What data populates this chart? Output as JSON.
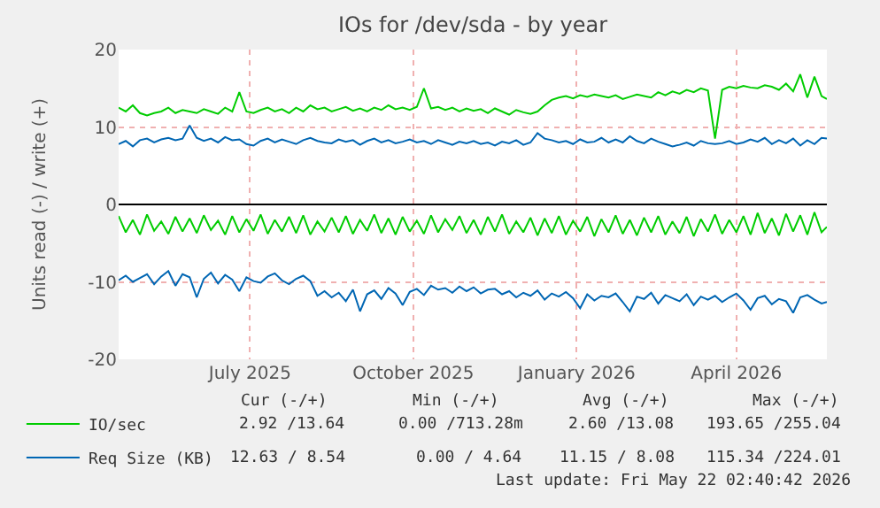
{
  "chart_data": {
    "type": "line",
    "title": "IOs for /dev/sda - by year",
    "ylabel": "Units read (-) / write (+)",
    "x": [
      "2025-04-18",
      "2025-04-22",
      "2025-04-26",
      "2025-04-30",
      "2025-05-04",
      "2025-05-08",
      "2025-05-12",
      "2025-05-16",
      "2025-05-20",
      "2025-05-24",
      "2025-05-28",
      "2025-06-01",
      "2025-06-05",
      "2025-06-09",
      "2025-06-13",
      "2025-06-17",
      "2025-06-21",
      "2025-06-25",
      "2025-06-29",
      "2025-07-03",
      "2025-07-07",
      "2025-07-11",
      "2025-07-15",
      "2025-07-19",
      "2025-07-23",
      "2025-07-27",
      "2025-07-31",
      "2025-08-04",
      "2025-08-08",
      "2025-08-12",
      "2025-08-16",
      "2025-08-20",
      "2025-08-24",
      "2025-08-28",
      "2025-09-01",
      "2025-09-05",
      "2025-09-09",
      "2025-09-13",
      "2025-09-17",
      "2025-09-21",
      "2025-09-25",
      "2025-09-29",
      "2025-10-03",
      "2025-10-07",
      "2025-10-11",
      "2025-10-15",
      "2025-10-19",
      "2025-10-23",
      "2025-10-27",
      "2025-10-31",
      "2025-11-04",
      "2025-11-08",
      "2025-11-12",
      "2025-11-16",
      "2025-11-20",
      "2025-11-24",
      "2025-11-28",
      "2025-12-02",
      "2025-12-06",
      "2025-12-10",
      "2025-12-14",
      "2025-12-18",
      "2025-12-22",
      "2025-12-26",
      "2025-12-30",
      "2026-01-03",
      "2026-01-07",
      "2026-01-11",
      "2026-01-15",
      "2026-01-19",
      "2026-01-23",
      "2026-01-27",
      "2026-01-31",
      "2026-02-04",
      "2026-02-08",
      "2026-02-12",
      "2026-02-16",
      "2026-02-20",
      "2026-02-24",
      "2026-02-28",
      "2026-03-04",
      "2026-03-08",
      "2026-03-12",
      "2026-03-16",
      "2026-03-20",
      "2026-03-24",
      "2026-03-28",
      "2026-04-01",
      "2026-04-05",
      "2026-04-09",
      "2026-04-13",
      "2026-04-17",
      "2026-04-21",
      "2026-04-25",
      "2026-04-29",
      "2026-05-03",
      "2026-05-07",
      "2026-05-11",
      "2026-05-15",
      "2026-05-19",
      "2026-05-22"
    ],
    "series": [
      {
        "color": "#00cc00",
        "values": [
          -1.5,
          -3.6,
          -2.0,
          -3.9,
          -1.3,
          -3.4,
          -2.2,
          -3.8,
          -1.6,
          -3.5,
          -1.8,
          -3.7,
          -1.4,
          -3.3,
          -2.1,
          -3.9,
          -1.5,
          -3.6,
          -1.9,
          -3.4,
          -1.3,
          -3.8,
          -2.0,
          -3.5,
          -1.6,
          -3.7,
          -1.4,
          -3.9,
          -2.2,
          -3.5,
          -1.7,
          -3.6,
          -1.5,
          -3.8,
          -2.0,
          -3.4,
          -1.3,
          -3.7,
          -1.8,
          -3.9,
          -1.6,
          -3.5,
          -2.1,
          -3.8,
          -1.4,
          -3.6,
          -1.9,
          -3.3,
          -1.5,
          -3.7,
          -2.0,
          -3.9,
          -1.6,
          -3.5,
          -1.3,
          -3.8,
          -2.2,
          -3.6,
          -1.7,
          -4.0,
          -1.8,
          -3.7,
          -1.5,
          -3.9,
          -2.1,
          -3.5,
          -1.6,
          -4.1,
          -1.9,
          -3.6,
          -1.4,
          -3.8,
          -2.0,
          -4.0,
          -1.7,
          -3.6,
          -1.5,
          -3.9,
          -2.2,
          -3.7,
          -1.6,
          -4.1,
          -1.9,
          -3.5,
          -1.3,
          -3.8,
          -2.0,
          -3.6,
          -1.5,
          -3.9,
          -1.1,
          -3.7,
          -1.8,
          -4.0,
          -1.2,
          -3.5,
          -1.4,
          -3.9,
          -1.0,
          -3.6,
          -2.9
        ]
      },
      {
        "name": "IO/sec",
        "color": "#00cc00",
        "values": [
          12.5,
          12.0,
          12.8,
          11.8,
          11.5,
          11.8,
          12.0,
          12.5,
          11.8,
          12.2,
          12.0,
          11.8,
          12.3,
          12.0,
          11.7,
          12.5,
          12.0,
          14.5,
          12.0,
          11.8,
          12.2,
          12.5,
          12.0,
          12.3,
          11.8,
          12.5,
          12.0,
          12.8,
          12.3,
          12.5,
          12.0,
          12.3,
          12.6,
          12.1,
          12.4,
          12.0,
          12.5,
          12.2,
          12.8,
          12.3,
          12.5,
          12.2,
          12.6,
          15.0,
          12.4,
          12.6,
          12.2,
          12.5,
          12.0,
          12.4,
          12.1,
          12.3,
          11.8,
          12.4,
          12.0,
          11.6,
          12.2,
          11.9,
          11.7,
          12.0,
          12.8,
          13.5,
          13.8,
          14.0,
          13.7,
          14.1,
          13.9,
          14.2,
          14.0,
          13.8,
          14.1,
          13.6,
          13.9,
          14.2,
          14.0,
          13.8,
          14.5,
          14.1,
          14.6,
          14.3,
          14.8,
          14.5,
          15.0,
          14.7,
          8.5,
          14.8,
          15.2,
          15.0,
          15.3,
          15.1,
          15.0,
          15.4,
          15.2,
          14.8,
          15.6,
          14.6,
          16.8,
          13.8,
          16.5,
          14.0,
          13.6
        ]
      },
      {
        "color": "#0066b3",
        "values": [
          -9.8,
          -9.2,
          -10.0,
          -9.5,
          -9.0,
          -10.3,
          -9.3,
          -8.6,
          -10.5,
          -9.0,
          -9.4,
          -12.0,
          -9.6,
          -8.8,
          -10.2,
          -9.1,
          -9.7,
          -11.2,
          -9.4,
          -9.9,
          -10.1,
          -9.3,
          -8.9,
          -9.8,
          -10.3,
          -9.6,
          -9.2,
          -9.9,
          -11.8,
          -11.2,
          -12.0,
          -11.4,
          -12.5,
          -11.0,
          -13.8,
          -11.6,
          -11.1,
          -12.2,
          -10.8,
          -11.5,
          -13.0,
          -11.3,
          -10.9,
          -11.7,
          -10.5,
          -11.0,
          -10.8,
          -11.4,
          -10.6,
          -11.2,
          -10.7,
          -11.5,
          -11.0,
          -10.9,
          -11.6,
          -11.2,
          -12.0,
          -11.4,
          -11.8,
          -11.1,
          -12.3,
          -11.5,
          -11.9,
          -11.3,
          -12.1,
          -13.4,
          -11.6,
          -12.4,
          -11.8,
          -12.0,
          -11.5,
          -12.6,
          -13.8,
          -11.9,
          -12.2,
          -11.4,
          -12.8,
          -11.7,
          -12.1,
          -12.5,
          -11.6,
          -13.0,
          -11.9,
          -12.3,
          -11.8,
          -12.6,
          -12.0,
          -11.5,
          -12.4,
          -13.6,
          -12.1,
          -11.8,
          -12.9,
          -12.2,
          -12.5,
          -14.0,
          -12.0,
          -11.7,
          -12.3,
          -12.8,
          -12.6
        ]
      },
      {
        "name": "Req Size (KB)",
        "color": "#0066b3",
        "values": [
          7.8,
          8.2,
          7.5,
          8.3,
          8.5,
          8.0,
          8.4,
          8.6,
          8.3,
          8.5,
          10.2,
          8.6,
          8.2,
          8.5,
          8.0,
          8.7,
          8.3,
          8.4,
          7.8,
          7.6,
          8.2,
          8.5,
          8.0,
          8.4,
          8.1,
          7.8,
          8.3,
          8.6,
          8.2,
          8.0,
          7.9,
          8.4,
          8.1,
          8.3,
          7.7,
          8.2,
          8.5,
          8.0,
          8.3,
          7.9,
          8.1,
          8.4,
          8.0,
          8.2,
          7.8,
          8.3,
          8.0,
          7.7,
          8.1,
          7.9,
          8.2,
          7.8,
          8.0,
          7.6,
          8.1,
          7.9,
          8.3,
          7.7,
          8.0,
          9.2,
          8.5,
          8.3,
          8.0,
          8.2,
          7.8,
          8.4,
          8.0,
          8.1,
          8.6,
          8.0,
          8.4,
          8.0,
          8.8,
          8.2,
          7.9,
          8.5,
          8.1,
          7.8,
          7.5,
          7.7,
          8.0,
          7.6,
          8.2,
          7.9,
          7.8,
          7.9,
          8.2,
          7.8,
          8.0,
          8.4,
          8.1,
          8.6,
          7.8,
          8.3,
          7.9,
          8.5,
          7.6,
          8.3,
          7.8,
          8.6,
          8.5
        ]
      }
    ],
    "xlim": [
      "2025-04-18",
      "2026-05-22"
    ],
    "xticks": [
      {
        "value": "2025-07-01",
        "label": "July 2025"
      },
      {
        "value": "2025-10-01",
        "label": "October 2025"
      },
      {
        "value": "2026-01-01",
        "label": "January 2026"
      },
      {
        "value": "2026-04-01",
        "label": "April 2026"
      }
    ],
    "ref_lines": [
      {
        "axis": "y",
        "value": 0,
        "color": "#000000"
      }
    ],
    "ylim": [
      -20,
      20
    ],
    "yticks": [
      -20,
      -10,
      0,
      10,
      20
    ],
    "grid": true,
    "legend": "bottom left",
    "marker": "none",
    "line_style": "solid",
    "annotations": [
      "Cur (-/+)",
      "Min (-/+)",
      "Avg (-/+)",
      "Max (-/+)",
      "2.92 /13.64",
      "0.00 /713.28m",
      "2.60 /13.08",
      "193.65 /255.04",
      "12.63 / 8.54",
      "0.00 / 4.64",
      "11.15 / 8.08",
      "115.34 /224.01",
      "Last update: Fri May 22 02:40:42 2026"
    ]
  }
}
